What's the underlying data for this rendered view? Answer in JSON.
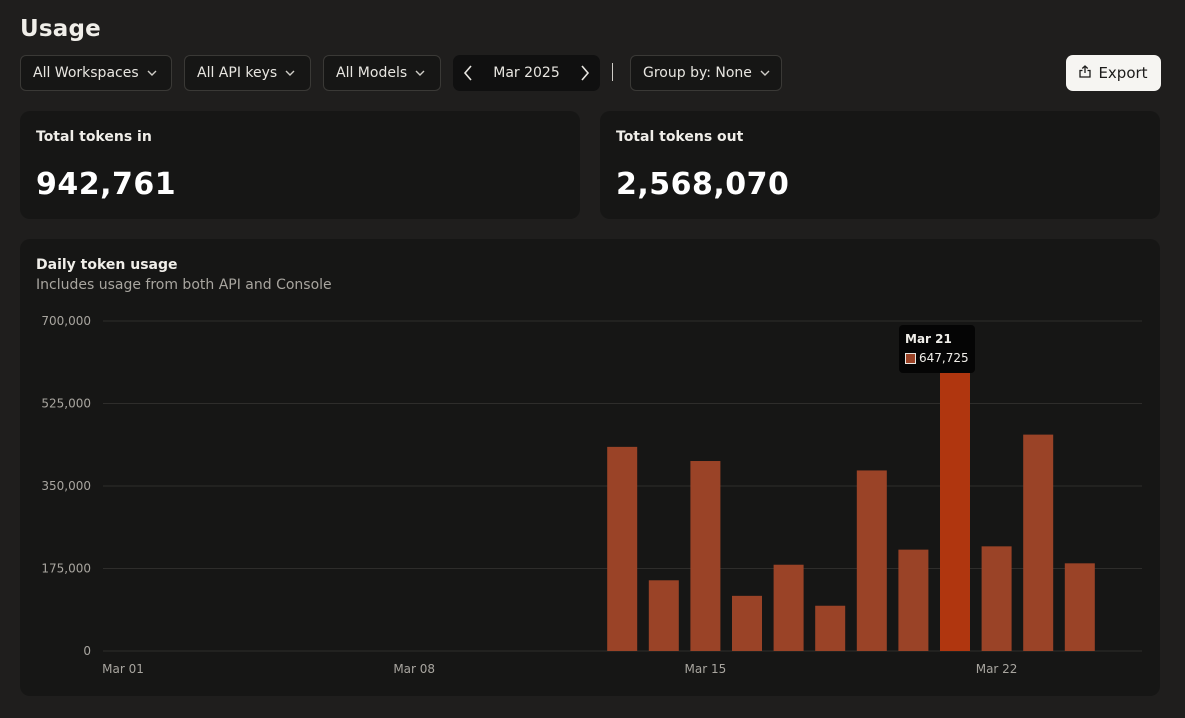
{
  "page": {
    "title": "Usage"
  },
  "filters": {
    "workspace": "All Workspaces",
    "api_keys": "All API keys",
    "models": "All Models",
    "month": "Mar 2025",
    "group_by": "Group by: None",
    "export_label": "Export"
  },
  "stats": {
    "tokens_in": {
      "label": "Total tokens in",
      "value": "942,761"
    },
    "tokens_out": {
      "label": "Total tokens out",
      "value": "2,568,070"
    }
  },
  "chart": {
    "title": "Daily token usage",
    "subtitle": "Includes usage from both API and Console",
    "tooltip": {
      "date": "Mar 21",
      "value": "647,725"
    }
  },
  "colors": {
    "bar": "#9a4327",
    "bar_highlight": "#b0360f",
    "grid": "#2e2d2b",
    "axis_text": "#a8a59f"
  },
  "chart_data": {
    "type": "bar",
    "x": [
      "Mar 01",
      "Mar 02",
      "Mar 03",
      "Mar 04",
      "Mar 05",
      "Mar 06",
      "Mar 07",
      "Mar 08",
      "Mar 09",
      "Mar 10",
      "Mar 11",
      "Mar 12",
      "Mar 13",
      "Mar 14",
      "Mar 15",
      "Mar 16",
      "Mar 17",
      "Mar 18",
      "Mar 19",
      "Mar 20",
      "Mar 21",
      "Mar 22",
      "Mar 23",
      "Mar 24",
      "Mar 25",
      "Mar 26"
    ],
    "values": [
      0,
      0,
      0,
      0,
      0,
      0,
      0,
      0,
      0,
      0,
      0,
      0,
      433000,
      150000,
      403000,
      117000,
      183000,
      96000,
      383000,
      215000,
      647725,
      222000,
      459000,
      186000,
      0,
      0
    ],
    "highlight_index": 20,
    "x_tick_labels": [
      "Mar 01",
      "Mar 08",
      "Mar 15",
      "Mar 22"
    ],
    "y_ticks": [
      0,
      175000,
      350000,
      525000,
      700000
    ],
    "y_tick_labels": [
      "0",
      "175,000",
      "350,000",
      "525,000",
      "700,000"
    ],
    "ylim": [
      0,
      700000
    ],
    "grid": true
  }
}
